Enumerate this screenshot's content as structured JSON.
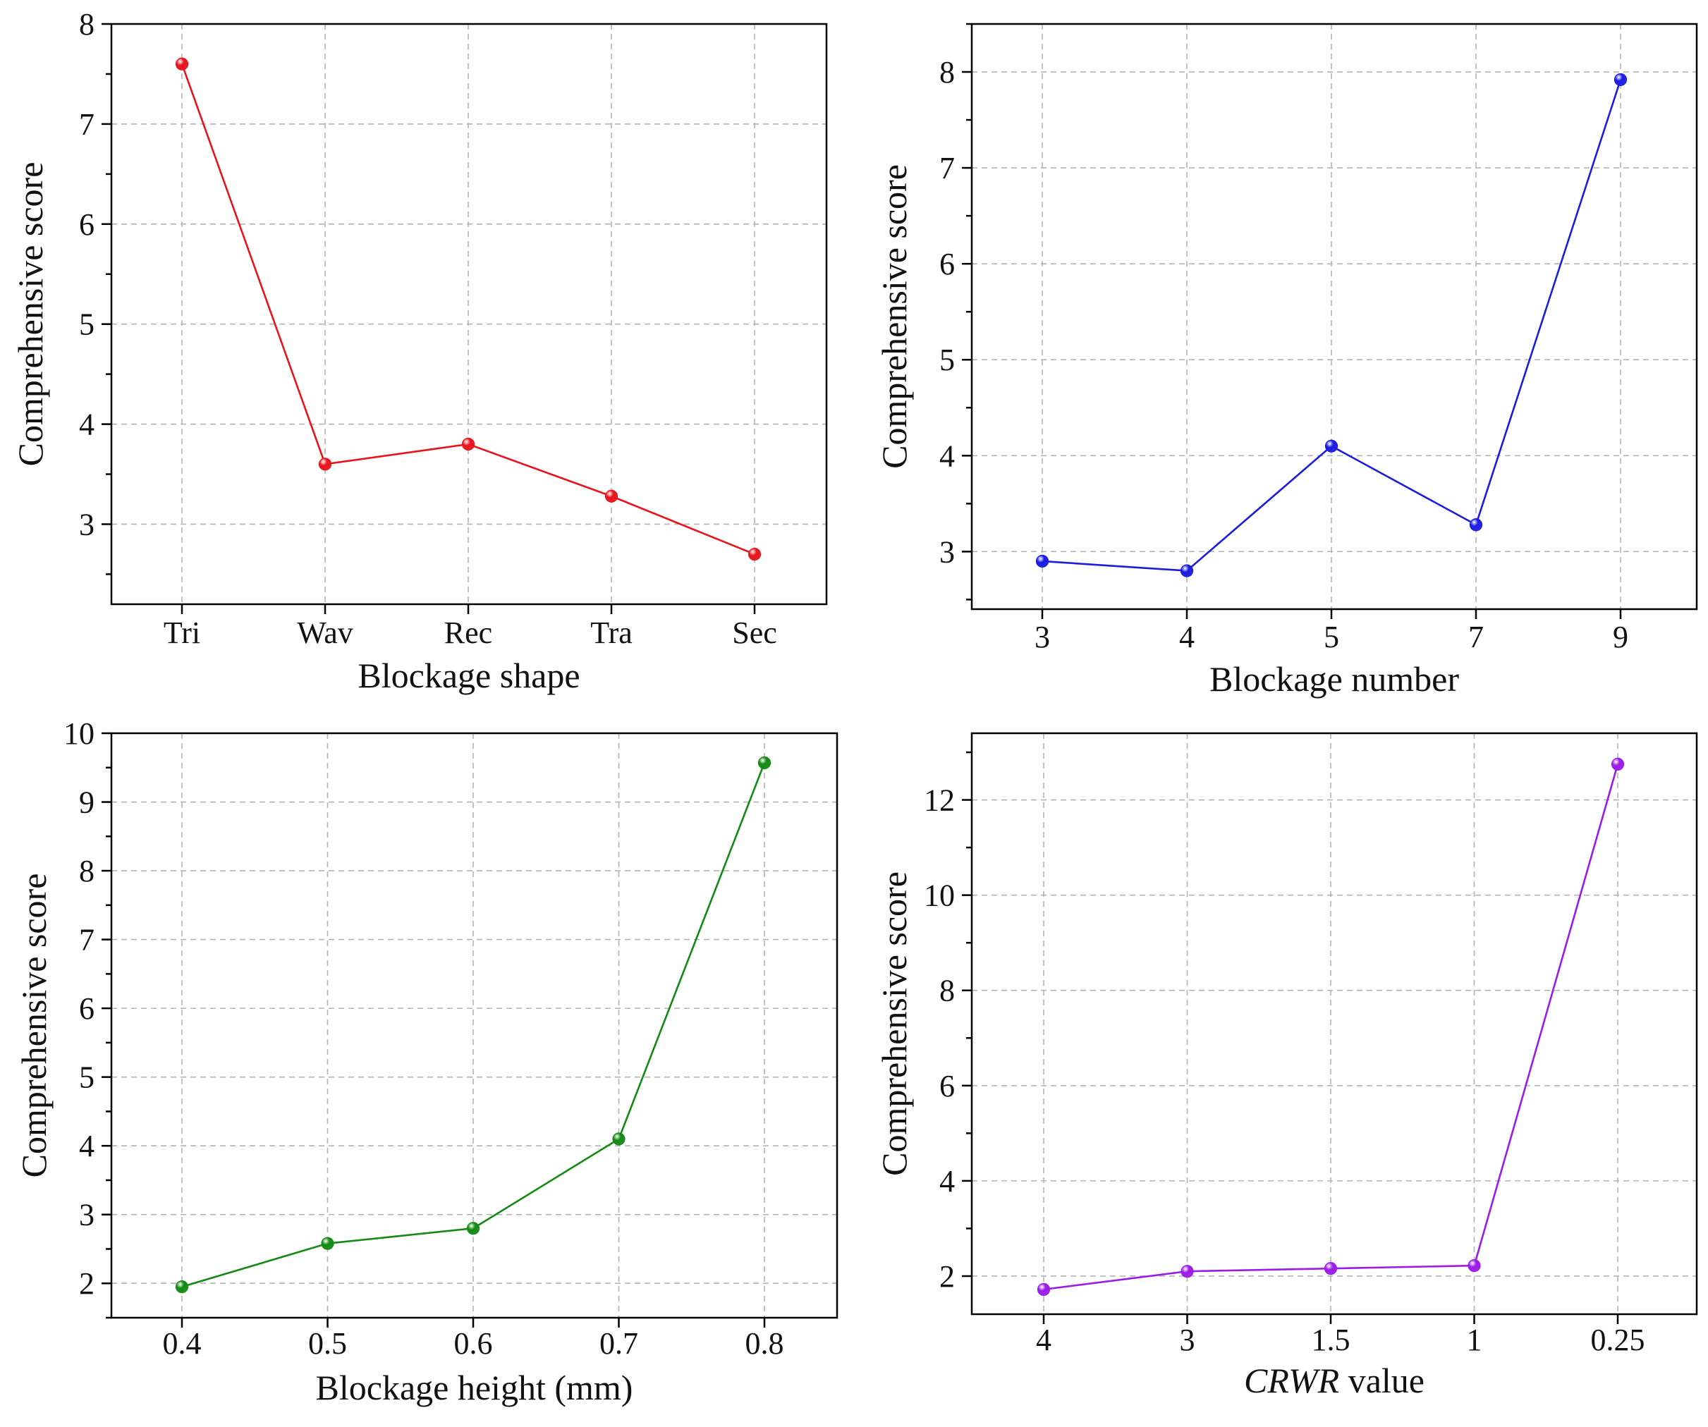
{
  "chart_data": [
    {
      "type": "line",
      "panel": "top-left",
      "xlabel": "Blockage shape",
      "ylabel": "Comprehensive score",
      "categories": [
        "Tri",
        "Wav",
        "Rec",
        "Tra",
        "Sec"
      ],
      "values": [
        7.6,
        3.6,
        3.8,
        3.28,
        2.7
      ],
      "ylim": [
        2.2,
        8.0
      ],
      "yticks": [
        3,
        4,
        5,
        6,
        7,
        8
      ],
      "color": "#e8141c",
      "grid": true
    },
    {
      "type": "line",
      "panel": "top-right",
      "xlabel": "Blockage number",
      "ylabel": "Comprehensive score",
      "categories": [
        "3",
        "4",
        "5",
        "7",
        "9"
      ],
      "values": [
        2.9,
        2.8,
        4.1,
        3.28,
        7.92
      ],
      "ylim": [
        2.4,
        8.5
      ],
      "yticks": [
        3,
        4,
        5,
        6,
        7,
        8
      ],
      "color": "#1c1ce0",
      "grid": true
    },
    {
      "type": "line",
      "panel": "bottom-left",
      "xlabel": "Blockage height (mm)",
      "ylabel": "Comprehensive score",
      "categories": [
        "0.4",
        "0.5",
        "0.6",
        "0.7",
        "0.8"
      ],
      "values": [
        1.95,
        2.58,
        2.8,
        4.1,
        9.57
      ],
      "ylim": [
        1.5,
        10.0
      ],
      "yticks": [
        2,
        3,
        4,
        5,
        6,
        7,
        8,
        9,
        10
      ],
      "color": "#138a13",
      "grid": true
    },
    {
      "type": "line",
      "panel": "bottom-right",
      "xlabel_italic": "CRWR",
      "xlabel_rest": " value",
      "ylabel": "Comprehensive score",
      "categories": [
        "4",
        "3",
        "1.5",
        "1",
        "0.25"
      ],
      "values": [
        1.72,
        2.1,
        2.16,
        2.22,
        12.75
      ],
      "ylim": [
        1.2,
        13.4
      ],
      "yticks": [
        2,
        4,
        6,
        8,
        10,
        12
      ],
      "color": "#9b1ce8",
      "grid": true
    }
  ]
}
